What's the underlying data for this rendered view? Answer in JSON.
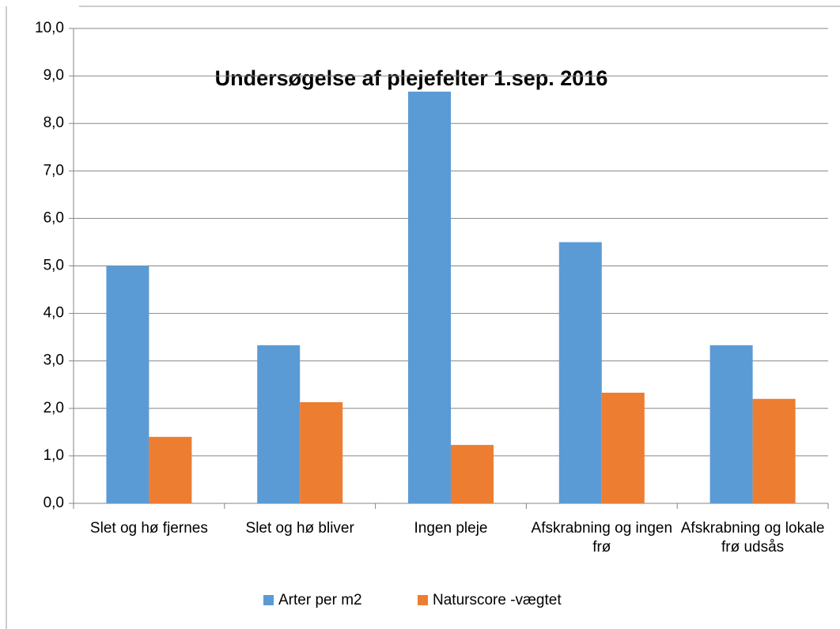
{
  "chart_data": {
    "type": "bar",
    "title": "Undersøgelse af plejefelter 1.sep. 2016",
    "categories": [
      "Slet og hø fjernes",
      "Slet og hø bliver",
      "Ingen pleje",
      "Afskrabning og ingen frø",
      "Afskrabning og lokale frø udsås"
    ],
    "series": [
      {
        "name": "Arter per m2",
        "color": "#5b9bd5",
        "values": [
          5.0,
          3.33,
          8.67,
          5.5,
          3.33
        ]
      },
      {
        "name": "Naturscore -vægtet",
        "color": "#ed7d31",
        "values": [
          1.4,
          2.13,
          1.23,
          2.33,
          2.2
        ]
      }
    ],
    "ylim": [
      0,
      10
    ],
    "yticks": [
      {
        "value": 0,
        "label": "0,0"
      },
      {
        "value": 1,
        "label": "1,0"
      },
      {
        "value": 2,
        "label": "2,0"
      },
      {
        "value": 3,
        "label": "3,0"
      },
      {
        "value": 4,
        "label": "4,0"
      },
      {
        "value": 5,
        "label": "5,0"
      },
      {
        "value": 6,
        "label": "6,0"
      },
      {
        "value": 7,
        "label": "7,0"
      },
      {
        "value": 8,
        "label": "8,0"
      },
      {
        "value": 9,
        "label": "9,0"
      },
      {
        "value": 10,
        "label": "10,0"
      }
    ],
    "grid": true,
    "legend": "bottom"
  }
}
